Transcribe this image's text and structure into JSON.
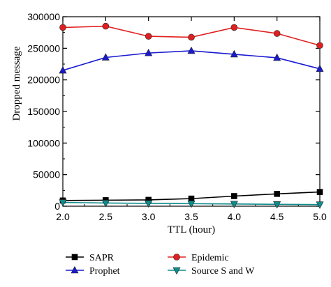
{
  "chart_data": {
    "type": "line",
    "title": "",
    "xlabel": "TTL (hour)",
    "ylabel": "Dropped message",
    "x": [
      2.0,
      2.5,
      3.0,
      3.5,
      4.0,
      4.5,
      5.0
    ],
    "x_tick_labels": [
      "2.0",
      "2.5",
      "3.0",
      "3.5",
      "4.0",
      "4.5",
      "5.0"
    ],
    "xlim": [
      2.0,
      5.0
    ],
    "ylim": [
      0,
      300000
    ],
    "y_ticks": [
      0,
      50000,
      100000,
      150000,
      200000,
      250000,
      300000
    ],
    "y_tick_labels": [
      "0",
      "50000",
      "100000",
      "150000",
      "200000",
      "250000",
      "300000"
    ],
    "grid": false,
    "legend_position": "below",
    "series": [
      {
        "name": "SAPR",
        "color": "#000000",
        "marker": "square",
        "values": [
          9000,
          9500,
          10000,
          12000,
          16000,
          19500,
          22500
        ]
      },
      {
        "name": "Epidemic",
        "color": "#e02020",
        "marker": "circle",
        "values": [
          283000,
          285000,
          269000,
          267500,
          283000,
          273500,
          254500
        ]
      },
      {
        "name": "Prophet",
        "color": "#1a1ad0",
        "marker": "triangle-up",
        "values": [
          215000,
          235500,
          242500,
          246000,
          240500,
          235000,
          217500
        ]
      },
      {
        "name": "Source S and W",
        "color": "#0f8c8c",
        "marker": "triangle-down",
        "values": [
          6000,
          5000,
          4500,
          4000,
          3500,
          3000,
          2500
        ]
      }
    ]
  }
}
